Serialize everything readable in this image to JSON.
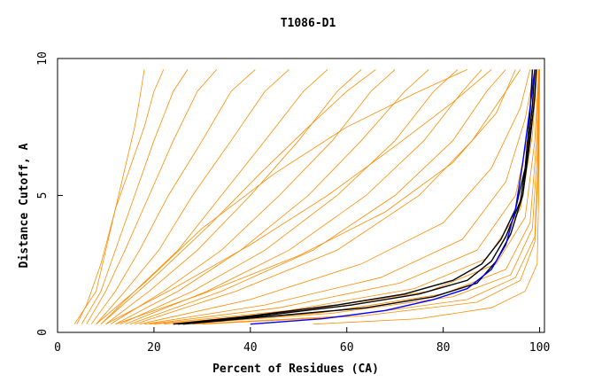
{
  "chart_data": {
    "type": "line",
    "title": "T1086-D1",
    "xlabel": "Percent of Residues (CA)",
    "ylabel": "Distance Cutoff, A",
    "xlim": [
      0,
      101
    ],
    "ylim": [
      0,
      10
    ],
    "xticks": [
      0,
      20,
      40,
      60,
      80,
      100
    ],
    "yticks": [
      0,
      5,
      10
    ],
    "grid": false,
    "legend": "none",
    "colors": {
      "orange": "#ff8c00",
      "black": "#000000",
      "blue": "#0000ff"
    },
    "series": [
      {
        "color": "#ff8c00",
        "x": [
          3.5,
          8,
          10,
          12,
          15,
          18,
          20,
          22
        ],
        "y": [
          0.3,
          1.5,
          3,
          4.5,
          6,
          7.5,
          8.8,
          9.6
        ]
      },
      {
        "color": "#ff8c00",
        "x": [
          5,
          9,
          12,
          16,
          20,
          24,
          27
        ],
        "y": [
          0.3,
          1.5,
          3,
          5,
          7,
          8.8,
          9.6
        ]
      },
      {
        "color": "#ff8c00",
        "x": [
          6,
          10,
          14,
          19,
          24,
          29,
          33
        ],
        "y": [
          0.3,
          1.5,
          3,
          5,
          7,
          8.8,
          9.6
        ]
      },
      {
        "color": "#ff8c00",
        "x": [
          7,
          12,
          17,
          23,
          30,
          36,
          41
        ],
        "y": [
          0.3,
          1.5,
          3,
          5,
          7,
          8.8,
          9.6
        ]
      },
      {
        "color": "#ff8c00",
        "x": [
          8,
          14,
          21,
          28,
          36,
          43,
          48
        ],
        "y": [
          0.3,
          1.5,
          3,
          5,
          7,
          8.8,
          9.6
        ]
      },
      {
        "color": "#ff8c00",
        "x": [
          9,
          16,
          25,
          34,
          43,
          51,
          56
        ],
        "y": [
          0.3,
          1.5,
          3,
          5,
          7,
          8.8,
          9.6
        ]
      },
      {
        "color": "#ff8c00",
        "x": [
          10,
          19,
          29,
          40,
          50,
          58,
          63
        ],
        "y": [
          0.3,
          1.5,
          3,
          5,
          7,
          8.8,
          9.6
        ]
      },
      {
        "color": "#ff8c00",
        "x": [
          11,
          22,
          34,
          46,
          57,
          65,
          70
        ],
        "y": [
          0.3,
          1.5,
          3,
          5,
          7,
          8.8,
          9.6
        ]
      },
      {
        "color": "#ff8c00",
        "x": [
          12,
          25,
          38,
          52,
          63,
          72,
          77
        ],
        "y": [
          0.3,
          1.5,
          3,
          5,
          7,
          8.8,
          9.6
        ]
      },
      {
        "color": "#ff8c00",
        "x": [
          13,
          28,
          43,
          58,
          70,
          78,
          83
        ],
        "y": [
          0.3,
          1.5,
          3,
          5,
          7,
          8.8,
          9.6
        ]
      },
      {
        "color": "#ff8c00",
        "x": [
          14,
          31,
          48,
          64,
          76,
          84,
          88
        ],
        "y": [
          0.3,
          1.5,
          3,
          5,
          7,
          8.8,
          9.6
        ]
      },
      {
        "color": "#ff8c00",
        "x": [
          15,
          34,
          53,
          70,
          82,
          89,
          93
        ],
        "y": [
          0.3,
          1.5,
          3,
          5,
          7,
          8.8,
          9.6
        ]
      },
      {
        "color": "#ff8c00",
        "x": [
          16,
          37,
          58,
          75,
          86,
          93,
          96
        ],
        "y": [
          0.3,
          1.5,
          3,
          5,
          7,
          8.8,
          9.6
        ]
      },
      {
        "color": "#ff8c00",
        "x": [
          17,
          40,
          63,
          80,
          90,
          96,
          98
        ],
        "y": [
          0.3,
          1.2,
          2.5,
          4,
          6,
          8.2,
          9.6
        ]
      },
      {
        "color": "#ff8c00",
        "x": [
          18,
          43,
          67,
          84,
          93,
          97,
          99
        ],
        "y": [
          0.3,
          1.0,
          2.0,
          3.4,
          5.5,
          7.8,
          9.6
        ]
      },
      {
        "color": "#ff8c00",
        "x": [
          19,
          46,
          71,
          87,
          95,
          98,
          99.5
        ],
        "y": [
          0.3,
          0.9,
          1.8,
          3.0,
          5.0,
          7.5,
          9.6
        ]
      },
      {
        "color": "#ff8c00",
        "x": [
          20,
          48,
          74,
          89,
          96,
          98.5,
          99.5
        ],
        "y": [
          0.3,
          0.8,
          1.6,
          2.7,
          4.5,
          7.2,
          9.6
        ]
      },
      {
        "color": "#ff8c00",
        "x": [
          22,
          51,
          77,
          91,
          97,
          99,
          99.8
        ],
        "y": [
          0.3,
          0.8,
          1.5,
          2.5,
          4.2,
          7.0,
          9.6
        ]
      },
      {
        "color": "#ff8c00",
        "x": [
          24,
          54,
          80,
          93,
          98,
          99.3,
          99.8
        ],
        "y": [
          0.3,
          0.7,
          1.4,
          2.3,
          4.0,
          6.8,
          9.6
        ]
      },
      {
        "color": "#ff8c00",
        "x": [
          26,
          57,
          82,
          94,
          98.5,
          99.5,
          99.9
        ],
        "y": [
          0.3,
          0.7,
          1.3,
          2.1,
          3.8,
          6.5,
          9.6
        ]
      },
      {
        "color": "#ff8c00",
        "x": [
          28,
          60,
          85,
          95,
          99,
          99.6,
          99.9
        ],
        "y": [
          0.3,
          0.6,
          1.2,
          2.0,
          3.5,
          6.0,
          9.6
        ]
      },
      {
        "color": "#ff8c00",
        "x": [
          30,
          63,
          87,
          96,
          99,
          99.7,
          100
        ],
        "y": [
          0.3,
          0.6,
          1.1,
          1.9,
          3.3,
          5.8,
          9.6
        ]
      },
      {
        "color": "#ff8c00",
        "x": [
          53,
          75,
          90,
          97,
          99.5,
          99.8,
          100
        ],
        "y": [
          0.3,
          0.5,
          0.9,
          1.5,
          2.5,
          5.0,
          9.6
        ]
      },
      {
        "color": "#ff8c00",
        "x": [
          4,
          6,
          9,
          12,
          14,
          16,
          17,
          18
        ],
        "y": [
          0.3,
          1.0,
          2.5,
          4.5,
          6.0,
          7.5,
          8.5,
          9.6
        ]
      },
      {
        "color": "#ff8c00",
        "x": [
          8,
          18,
          30,
          45,
          60,
          75,
          85
        ],
        "y": [
          0.3,
          1.8,
          3.8,
          5.8,
          7.5,
          8.8,
          9.6
        ]
      },
      {
        "color": "#ff8c00",
        "x": [
          10,
          24,
          40,
          56,
          70,
          82,
          90
        ],
        "y": [
          0.3,
          1.6,
          3.2,
          5.0,
          6.8,
          8.4,
          9.6
        ]
      },
      {
        "color": "#ff8c00",
        "x": [
          12,
          30,
          50,
          68,
          82,
          91,
          95
        ],
        "y": [
          0.3,
          1.4,
          2.8,
          4.4,
          6.2,
          8.0,
          9.6
        ]
      },
      {
        "color": "#ff8c00",
        "x": [
          9,
          20,
          32,
          42,
          52,
          60,
          66
        ],
        "y": [
          0.3,
          2.0,
          4.0,
          5.8,
          7.5,
          8.8,
          9.6
        ]
      },
      {
        "color": "#000000",
        "x": [
          24,
          40,
          58,
          72,
          82,
          88,
          92,
          95,
          97,
          98,
          98.5
        ],
        "y": [
          0.3,
          0.6,
          1.0,
          1.4,
          1.9,
          2.5,
          3.4,
          4.5,
          6.0,
          8.0,
          9.6
        ]
      },
      {
        "color": "#000000",
        "x": [
          25,
          42,
          61,
          75,
          85,
          90,
          93,
          96,
          97.5,
          98.5,
          99
        ],
        "y": [
          0.3,
          0.6,
          1.0,
          1.4,
          1.9,
          2.6,
          3.5,
          4.8,
          6.5,
          8.3,
          9.6
        ]
      },
      {
        "color": "#000000",
        "x": [
          26,
          45,
          64,
          78,
          87,
          91,
          94,
          96.5,
          98,
          99,
          99.3
        ],
        "y": [
          0.3,
          0.6,
          0.9,
          1.3,
          1.8,
          2.6,
          3.6,
          5.0,
          7.0,
          8.6,
          9.6
        ]
      },
      {
        "color": "#0000ff",
        "x": [
          40,
          55,
          68,
          78,
          85,
          90,
          93,
          95,
          96.5,
          98,
          99
        ],
        "y": [
          0.3,
          0.5,
          0.8,
          1.2,
          1.6,
          2.3,
          3.2,
          4.5,
          6.2,
          8.2,
          9.6
        ]
      }
    ]
  }
}
